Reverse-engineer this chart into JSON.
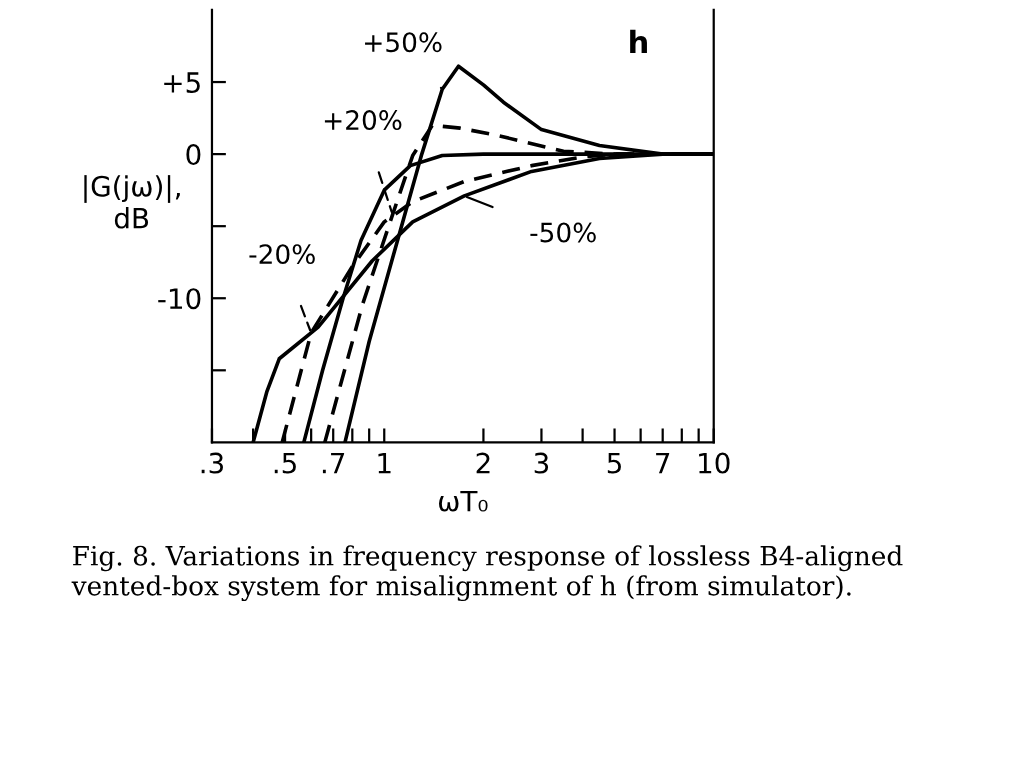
{
  "chart_data": {
    "type": "line",
    "xlabel": "ωT₀",
    "ylabel": "|G(jω)|,\ndB",
    "log": "x",
    "xlim": [
      0.3,
      10
    ],
    "ylim": [
      -20,
      10
    ],
    "xticks": [
      {
        "value": 0.3,
        "label": ".3"
      },
      {
        "value": 0.4,
        "label": null
      },
      {
        "value": 0.5,
        "label": ".5"
      },
      {
        "value": 0.6,
        "label": null
      },
      {
        "value": 0.7,
        "label": ".7"
      },
      {
        "value": 0.8,
        "label": null
      },
      {
        "value": 0.9,
        "label": null
      },
      1,
      2,
      3,
      {
        "value": 4,
        "label": null
      },
      5,
      {
        "value": 6,
        "label": null
      },
      7,
      {
        "value": 8,
        "label": null
      },
      {
        "value": 9,
        "label": null
      },
      10
    ],
    "yticks": [
      {
        "value": -15,
        "label": null
      },
      {
        "value": -10,
        "label": "-10"
      },
      {
        "value": -5,
        "label": null
      },
      0,
      {
        "value": 5,
        "label": "+5"
      }
    ],
    "grid": false,
    "legend": false,
    "marker": "none",
    "series": [
      {
        "name": "+50%",
        "color": "#000000",
        "line_style": "solid",
        "x": [
          0.76,
          0.9,
          1.1,
          1.3,
          1.5,
          1.68,
          2.0,
          2.3,
          3.0,
          4.5,
          7,
          10
        ],
        "values": [
          -20,
          -13,
          -5.9,
          0,
          4.5,
          6.1,
          4.8,
          3.6,
          1.7,
          0.6,
          0,
          0
        ]
      },
      {
        "name": "+20%",
        "color": "#000000",
        "line_style": "dashed",
        "x": [
          0.66,
          0.86,
          1.06,
          1.22,
          1.4,
          1.7,
          2.2,
          3.5,
          5,
          10
        ],
        "values": [
          -20,
          -10.4,
          -4.2,
          -0.1,
          2.0,
          1.8,
          1.3,
          0.2,
          0,
          0
        ]
      },
      {
        "color": "#000000",
        "line_style": "solid",
        "x": [
          0.57,
          0.65,
          0.75,
          0.85,
          1.0,
          1.2,
          1.5,
          2.0,
          10
        ],
        "values": [
          -20,
          -15,
          -10,
          -6,
          -2.5,
          -0.8,
          -0.1,
          0,
          0
        ]
      },
      {
        "name": "-20%",
        "color": "#000000",
        "line_style": "dashed",
        "x": [
          0.49,
          0.6,
          0.8,
          1.0,
          1.22,
          1.75,
          2.8,
          4,
          5,
          10
        ],
        "values": [
          -20,
          -12.4,
          -7.8,
          -4.7,
          -3.3,
          -1.9,
          -0.8,
          -0.2,
          0,
          0
        ]
      },
      {
        "name": "-50%",
        "color": "#000000",
        "line_style": "solid",
        "x": [
          0.4,
          0.44,
          0.48,
          0.63,
          0.92,
          1.22,
          1.75,
          2.8,
          4.5,
          7,
          10
        ],
        "values": [
          -20,
          -16.5,
          -14.2,
          -12,
          -7.4,
          -4.7,
          -2.9,
          -1.2,
          -0.3,
          0,
          0
        ]
      }
    ],
    "annotations": [
      "h",
      "Fig. 8. Variations in frequency response of lossless B4-aligned vented-box system for misalignment of h (from simulator)."
    ]
  }
}
